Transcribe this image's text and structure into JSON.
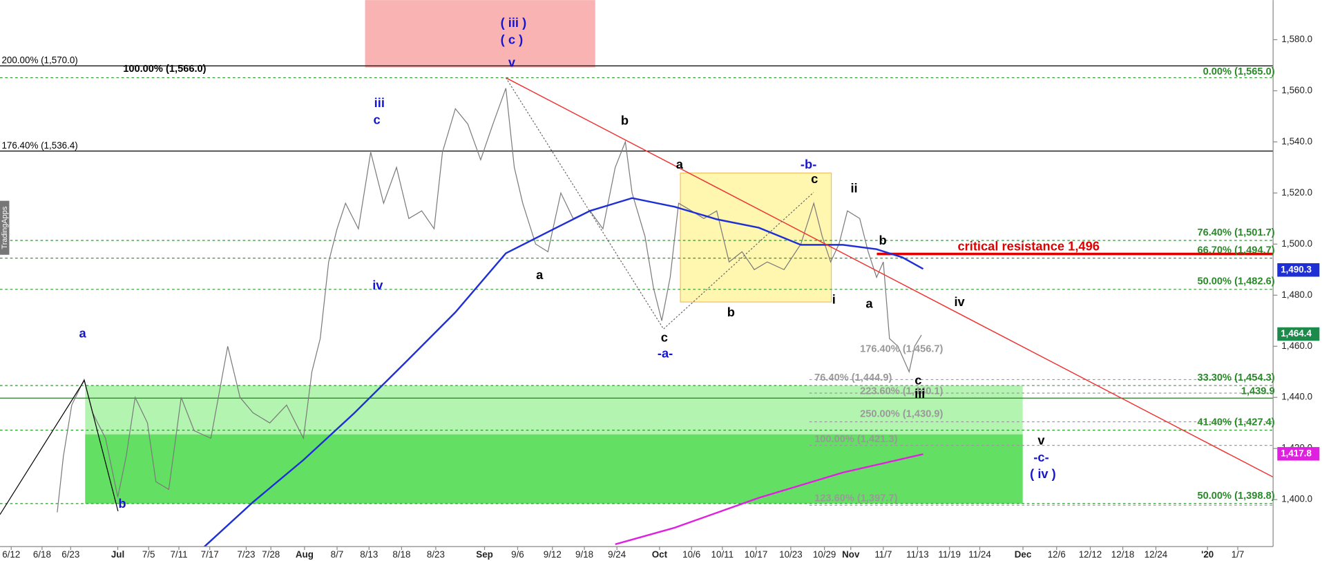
{
  "chart_data": {
    "type": "line",
    "xlim": [
      -2,
      225
    ],
    "ylim": [
      1376,
      1595.5
    ],
    "xticks": [
      {
        "value": 0,
        "label": "6/12"
      },
      {
        "value": 5.5,
        "label": "6/18"
      },
      {
        "value": 10.6,
        "label": "6/23"
      },
      {
        "value": 19,
        "label": "Jul"
      },
      {
        "value": 24.5,
        "label": "7/5"
      },
      {
        "value": 29.9,
        "label": "7/11"
      },
      {
        "value": 35.4,
        "label": "7/17"
      },
      {
        "value": 41.9,
        "label": "7/23"
      },
      {
        "value": 46.3,
        "label": "7/28"
      },
      {
        "value": 52.3,
        "label": "Aug"
      },
      {
        "value": 58.1,
        "label": "8/7"
      },
      {
        "value": 63.8,
        "label": "8/13"
      },
      {
        "value": 69.6,
        "label": "8/18"
      },
      {
        "value": 75.7,
        "label": "8/23"
      },
      {
        "value": 84.4,
        "label": "Sep"
      },
      {
        "value": 90.3,
        "label": "9/6"
      },
      {
        "value": 96.5,
        "label": "9/12"
      },
      {
        "value": 102.2,
        "label": "9/18"
      },
      {
        "value": 108,
        "label": "9/24"
      },
      {
        "value": 115.6,
        "label": "Oct"
      },
      {
        "value": 121.3,
        "label": "10/6"
      },
      {
        "value": 126.8,
        "label": "10/11"
      },
      {
        "value": 132.8,
        "label": "10/17"
      },
      {
        "value": 139,
        "label": "10/23"
      },
      {
        "value": 145,
        "label": "10/29"
      },
      {
        "value": 149.7,
        "label": "Nov"
      },
      {
        "value": 155.5,
        "label": "11/7"
      },
      {
        "value": 161.6,
        "label": "11/13"
      },
      {
        "value": 167.3,
        "label": "11/19"
      },
      {
        "value": 172.7,
        "label": "11/24"
      },
      {
        "value": 180.4,
        "label": "Dec"
      },
      {
        "value": 186.4,
        "label": "12/6"
      },
      {
        "value": 192.4,
        "label": "12/12"
      },
      {
        "value": 198.2,
        "label": "12/18"
      },
      {
        "value": 204.1,
        "label": "12/24"
      },
      {
        "value": 213.3,
        "label": "'20"
      },
      {
        "value": 218.7,
        "label": "1/7"
      }
    ],
    "yticks": [
      {
        "value": 1400,
        "label": "1,400.0"
      },
      {
        "value": 1420,
        "label": "1,420.0"
      },
      {
        "value": 1440,
        "label": "1,440.0"
      },
      {
        "value": 1460,
        "label": "1,460.0"
      },
      {
        "value": 1480,
        "label": "1,480.0"
      },
      {
        "value": 1500,
        "label": "1,500.0"
      },
      {
        "value": 1520,
        "label": "1,520.0"
      },
      {
        "value": 1540,
        "label": "1,540.0"
      },
      {
        "value": 1560,
        "label": "1,560.0"
      },
      {
        "value": 1580,
        "label": "1,580.0"
      }
    ],
    "series": [
      {
        "color": "#7a7a7a",
        "x": [
          8.2,
          9.3,
          10.8,
          13.0,
          14.5,
          16.8,
          19.0,
          20.5,
          22.1,
          24.3,
          25.8,
          28.1,
          30.3,
          32.6,
          35.6,
          38.6,
          40.8,
          43.1,
          46.1,
          49.1,
          52.1,
          53.6,
          55.1,
          56.6,
          58.1,
          59.6,
          61.9,
          64.1,
          66.4,
          68.7,
          70.9,
          73.2,
          75.4,
          76.9,
          79.2,
          81.4,
          83.7,
          85.9,
          88.2,
          89.7,
          91.2,
          93.5,
          95.7,
          98.0,
          100.2,
          103.2,
          105.5,
          107.7,
          109.5,
          110.7,
          113.0,
          114.5,
          116.0,
          117.5,
          119.0,
          121.3,
          123.5,
          125.8,
          128.0,
          130.3,
          132.5,
          134.8,
          137.8,
          140.8,
          143.1,
          144.6,
          146.1,
          147.6,
          149.1,
          151.3,
          152.8,
          154.3,
          155.5,
          156.6,
          158.1,
          160.1,
          161.1,
          162.3
        ],
        "values": [
          1395,
          1417,
          1437,
          1447,
          1434,
          1424,
          1401,
          1417,
          1440,
          1430,
          1407,
          1404,
          1440,
          1427,
          1424,
          1460,
          1440,
          1434,
          1430,
          1437,
          1424,
          1450,
          1463,
          1493,
          1506,
          1516,
          1506,
          1536,
          1516,
          1530,
          1510,
          1513,
          1506,
          1536,
          1553,
          1547,
          1533,
          1547,
          1561,
          1530,
          1516,
          1500,
          1497,
          1520,
          1510,
          1513,
          1506,
          1530,
          1540,
          1520,
          1503,
          1483,
          1470,
          1487,
          1516,
          1513,
          1510,
          1513,
          1493,
          1497,
          1490,
          1493,
          1490,
          1500,
          1516,
          1503,
          1493,
          1500,
          1513,
          1510,
          1497,
          1487,
          1493,
          1463,
          1460,
          1450,
          1460,
          1464.4
        ]
      },
      {
        "color": "#1f2fd6",
        "x": [
          34.1,
          43.1,
          52.1,
          61.1,
          70.2,
          79.2,
          88.2,
          97.2,
          103.2,
          110.7,
          118.3,
          125.8,
          133.3,
          140.8,
          148.3,
          154.3,
          158.9,
          162.6
        ],
        "values": [
          1380.9,
          1399,
          1415.5,
          1433.7,
          1453.5,
          1473.3,
          1496.4,
          1506.4,
          1513,
          1518,
          1514.6,
          1509.7,
          1506.4,
          1499.7,
          1499.7,
          1498,
          1494.8,
          1490.3
        ]
      },
      {
        "color": "#e020e0",
        "x": [
          107.7,
          118.3,
          133.3,
          148.3,
          162.6
        ],
        "values": [
          1382.5,
          1389,
          1400.7,
          1410.6,
          1417.8
        ]
      },
      {
        "color": "#ee3333",
        "x": [
          88.2,
          225
        ],
        "values": [
          1565.1,
          1408.8
        ]
      }
    ],
    "price_tags": [
      "1,490.3",
      "1,464.4",
      "1,417.8"
    ],
    "critical": "critical resistance 1,496",
    "fib_labels": [
      "200.00% (1,570.0)",
      "100.00% (1,566.0)",
      "176.40% (1,536.4)",
      "0.00% (1,565.0)",
      "76.40% (1,501.7)",
      "66.70% (1,494.7)",
      "50.00% (1,482.6)",
      "33.30% (1,454.3)",
      "1,439.9",
      "41.40% (1,427.4)",
      "50.00% (1,398.8)",
      "176.40% (1,456.7)",
      "76.40% (1,444.9)",
      "223.60% (1,440.1)",
      "250.00% (1,430.9)",
      "100.00% (1,421.3)",
      "123.60% (1,397.7)"
    ],
    "wave_labels": [
      "( iii )",
      "( c )",
      "v",
      "iii",
      "c",
      "iv",
      "a",
      "b",
      "-a-",
      "-b-",
      "-c-",
      "( iv )",
      "b",
      "a",
      "c",
      "a",
      "c",
      "b",
      "ii",
      "i",
      "a",
      "b",
      "iv",
      "c",
      "iii",
      "v"
    ],
    "watermark": "TradingApps"
  }
}
